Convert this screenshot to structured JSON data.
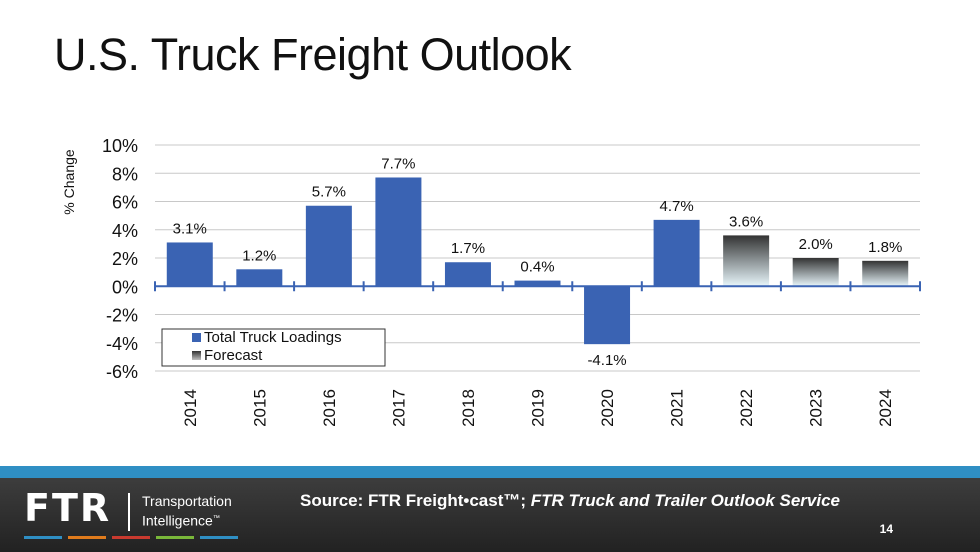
{
  "slide": {
    "title": "U.S. Truck Freight Outlook"
  },
  "chart_data": {
    "type": "bar",
    "title": "",
    "xlabel": "",
    "ylabel": "% Change",
    "ylim": [
      -6,
      10
    ],
    "yticks": [
      10,
      8,
      6,
      4,
      2,
      0,
      -2,
      -4,
      -6
    ],
    "ytick_labels": [
      "10%",
      "8%",
      "6%",
      "4%",
      "2%",
      "0%",
      "-2%",
      "-4%",
      "-6%"
    ],
    "categories": [
      "2014",
      "2015",
      "2016",
      "2017",
      "2018",
      "2019",
      "2020",
      "2021",
      "2022",
      "2023",
      "2024"
    ],
    "values": [
      3.1,
      1.2,
      5.7,
      7.7,
      1.7,
      0.4,
      -4.1,
      4.7,
      3.6,
      2.0,
      1.8
    ],
    "data_labels": [
      "3.1%",
      "1.2%",
      "5.7%",
      "7.7%",
      "1.7%",
      "0.4%",
      "-4.1%",
      "4.7%",
      "3.6%",
      "2.0%",
      "1.8%"
    ],
    "series_type": [
      "actual",
      "actual",
      "actual",
      "actual",
      "actual",
      "actual",
      "actual",
      "actual",
      "forecast",
      "forecast",
      "forecast"
    ],
    "legend": {
      "placement": "bottom-left",
      "entries": [
        {
          "label": "Total Truck Loadings",
          "color": "#3a63b3"
        },
        {
          "label": "Forecast",
          "color": "#555555"
        }
      ]
    },
    "grid": true
  },
  "colors": {
    "bar_actual": "#3a63b3",
    "forecast_top": "#333333",
    "forecast_bottom": "#e8f6fb",
    "axis": "#3a63b3",
    "grid": "#c8c8c8"
  },
  "footer": {
    "logo": "FTR",
    "tagline_1": "Transportation",
    "tagline_2": "Intelligence",
    "tagline_mark": "™",
    "source_prefix": "Source: FTR Freight•cast™; ",
    "source_italic": "FTR Truck and Trailer Outlook Service",
    "page_number": "14",
    "logo_colors": [
      "#2f8fc4",
      "#e07b1c",
      "#c93a2f",
      "#7ab83a",
      "#2f8fc4"
    ]
  }
}
